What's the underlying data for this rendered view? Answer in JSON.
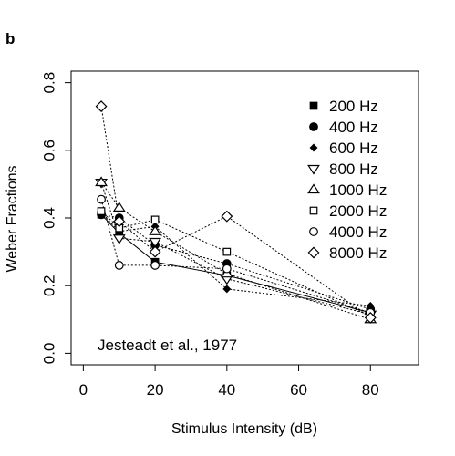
{
  "panel_label": "b",
  "chart_data": {
    "type": "scatter",
    "xlabel": "Stimulus Intensity (dB)",
    "ylabel": "Weber Fractions",
    "xlim": [
      -3.4,
      93.4
    ],
    "ylim": [
      -0.034,
      0.834
    ],
    "xticks": [
      0,
      20,
      40,
      60,
      80
    ],
    "yticks": [
      0.0,
      0.2,
      0.4,
      0.6,
      0.8
    ],
    "ytick_labels": [
      "0.0",
      "0.2",
      "0.4",
      "0.6",
      "0.8"
    ],
    "grid": false,
    "legend_position": "top-right",
    "annotation": "Jesteadt et al., 1977",
    "series": [
      {
        "name": "200 Hz",
        "marker": "square-filled",
        "x": [
          5,
          10,
          20,
          40,
          80
        ],
        "y": [
          0.41,
          0.355,
          0.27,
          0.23,
          0.12
        ]
      },
      {
        "name": "400 Hz",
        "marker": "circle-filled",
        "x": [
          5,
          10,
          20,
          40,
          80
        ],
        "y": [
          0.41,
          0.4,
          0.32,
          0.265,
          0.13
        ]
      },
      {
        "name": "600 Hz",
        "marker": "diamond-filled",
        "x": [
          5,
          10,
          20,
          40,
          80
        ],
        "y": [
          0.415,
          0.36,
          0.375,
          0.19,
          0.14
        ]
      },
      {
        "name": "800 Hz",
        "marker": "triangle-down-open",
        "x": [
          5,
          10,
          20,
          40,
          80
        ],
        "y": [
          0.505,
          0.34,
          0.33,
          0.22,
          0.115
        ]
      },
      {
        "name": "1000 Hz",
        "marker": "triangle-up-open",
        "x": [
          5,
          10,
          20,
          40,
          80
        ],
        "y": [
          0.505,
          0.43,
          0.36,
          0.235,
          0.1
        ]
      },
      {
        "name": "2000 Hz",
        "marker": "square-open",
        "x": [
          5,
          10,
          20,
          40,
          80
        ],
        "y": [
          0.42,
          0.37,
          0.395,
          0.3,
          0.11
        ]
      },
      {
        "name": "4000 Hz",
        "marker": "circle-open",
        "x": [
          5,
          10,
          20,
          40,
          80
        ],
        "y": [
          0.455,
          0.26,
          0.26,
          0.25,
          0.12
        ]
      },
      {
        "name": "8000 Hz",
        "marker": "diamond-open",
        "x": [
          5,
          10,
          20,
          40,
          80
        ],
        "y": [
          0.73,
          0.39,
          0.3,
          0.405,
          0.105
        ]
      }
    ]
  }
}
